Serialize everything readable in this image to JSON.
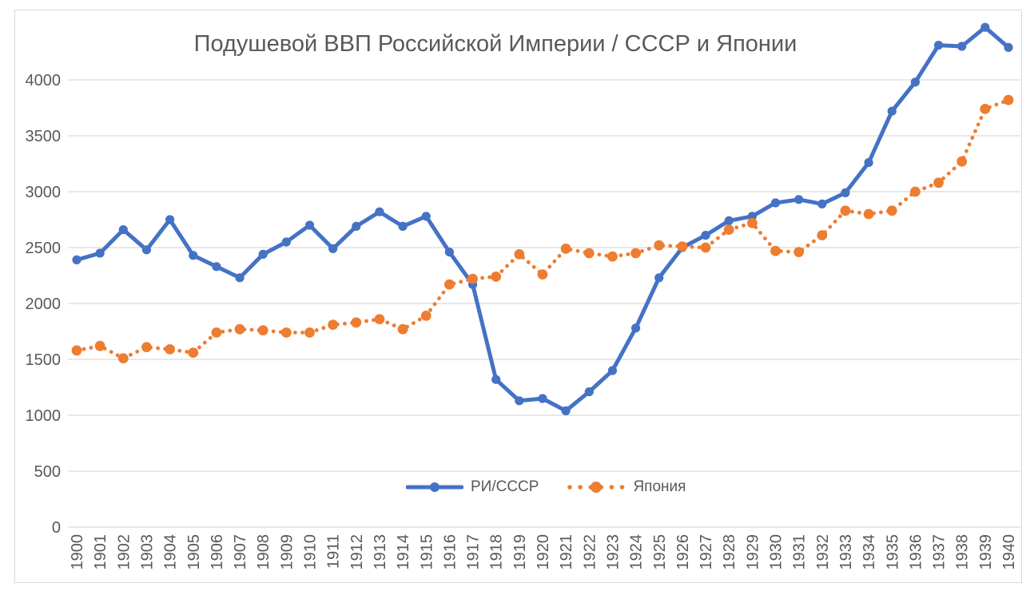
{
  "title": "Подушевой ВВП Российской Империи / СССР и Японии",
  "legend": {
    "items": [
      {
        "label": "РИ/СССР"
      },
      {
        "label": "Япония"
      }
    ]
  },
  "colors": {
    "ussr_series": "#4472C4",
    "japan_series": "#ED7D31",
    "gridline": "#D9D9D9",
    "frame_border": "#D9D9D9",
    "text": "#595959",
    "background": "#FFFFFF"
  },
  "chart_data": {
    "type": "line",
    "title": "Подушевой ВВП Российской Империи / СССР и Японии",
    "x": [
      1900,
      1901,
      1902,
      1903,
      1904,
      1905,
      1906,
      1907,
      1908,
      1909,
      1910,
      1911,
      1912,
      1913,
      1914,
      1915,
      1916,
      1917,
      1918,
      1919,
      1920,
      1921,
      1922,
      1923,
      1924,
      1925,
      1926,
      1927,
      1928,
      1929,
      1930,
      1931,
      1932,
      1933,
      1934,
      1935,
      1936,
      1937,
      1938,
      1939,
      1940
    ],
    "series": [
      {
        "name": "РИ/СССР",
        "line_style": "solid",
        "color": "#4472C4",
        "values": [
          2390,
          2450,
          2660,
          2480,
          2750,
          2430,
          2330,
          2230,
          2440,
          2550,
          2700,
          2490,
          2690,
          2820,
          2690,
          2780,
          2460,
          2170,
          1320,
          1130,
          1150,
          1040,
          1210,
          1400,
          1780,
          2230,
          2500,
          2610,
          2740,
          2780,
          2900,
          2930,
          2890,
          2990,
          3260,
          3720,
          3980,
          4310,
          4300,
          4470,
          4290
        ]
      },
      {
        "name": "Япония",
        "line_style": "dotted",
        "color": "#ED7D31",
        "values": [
          1580,
          1620,
          1510,
          1610,
          1590,
          1560,
          1740,
          1770,
          1760,
          1740,
          1740,
          1810,
          1830,
          1860,
          1770,
          1890,
          2170,
          2220,
          2240,
          2440,
          2260,
          2490,
          2450,
          2420,
          2450,
          2520,
          2510,
          2500,
          2660,
          2720,
          2470,
          2460,
          2610,
          2830,
          2800,
          2830,
          3000,
          3080,
          3270,
          3740,
          3820
        ]
      }
    ],
    "yticks": [
      0,
      500,
      1000,
      1500,
      2000,
      2500,
      3000,
      3500,
      4000
    ],
    "ylim": [
      0,
      4500
    ],
    "xlabel": "",
    "ylabel": "",
    "grid": "horizontal",
    "legend_position": "bottom-center-inside",
    "x_tick_rotation": -90
  }
}
